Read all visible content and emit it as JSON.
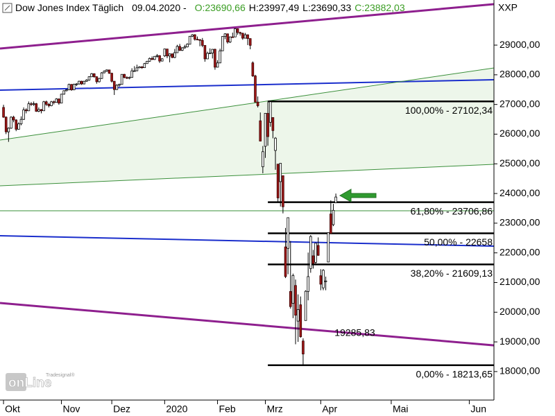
{
  "chart_data": {
    "type": "candlestick",
    "title": "Dow Jones Index Täglich",
    "date": "09.04.2020 -",
    "header_values": [
      {
        "text": "O:23690,66",
        "color": "#3a9d23"
      },
      {
        "text": "H:23997,49",
        "color": "#000000"
      },
      {
        "text": "L:23690,33",
        "color": "#000000"
      },
      {
        "text": "C:23882,03",
        "color": "#3a9d23"
      }
    ],
    "y_axis_label": "XXP",
    "logo": {
      "small": "Tradesignal®",
      "main": "onLine"
    },
    "up_color": "#ffffff",
    "down_color": "#a01818",
    "xlim": [
      -1.4,
      194.8
    ],
    "ylim": [
      17040,
      30520
    ],
    "xticks": [
      {
        "value": 0,
        "label": "Okt"
      },
      {
        "value": 23,
        "label": "Nov"
      },
      {
        "value": 43,
        "label": "Dez"
      },
      {
        "value": 64,
        "label": "2020"
      },
      {
        "value": 85,
        "label": "Feb"
      },
      {
        "value": 104,
        "label": "Mrz"
      },
      {
        "value": 126,
        "label": "Apr"
      },
      {
        "value": 154,
        "label": "Mai"
      },
      {
        "value": 185,
        "label": "Jun"
      }
    ],
    "yticks": [
      {
        "value": 18000,
        "label": "18000,00"
      },
      {
        "value": 19000,
        "label": "19000,00"
      },
      {
        "value": 20000,
        "label": "20000,00"
      },
      {
        "value": 21000,
        "label": "21000,00"
      },
      {
        "value": 22000,
        "label": "22000,00"
      },
      {
        "value": 23000,
        "label": "23000,00"
      },
      {
        "value": 24000,
        "label": "24000,00"
      },
      {
        "value": 25000,
        "label": "25000,00"
      },
      {
        "value": 26000,
        "label": "26000,00"
      },
      {
        "value": 27000,
        "label": "27000,00"
      },
      {
        "value": 28000,
        "label": "28000,00"
      },
      {
        "value": 29000,
        "label": "29000,00"
      }
    ],
    "x": [
      0,
      1,
      2,
      3,
      4,
      5,
      6,
      7,
      8,
      9,
      10,
      11,
      12,
      13,
      14,
      15,
      16,
      17,
      18,
      19,
      20,
      21,
      22,
      23,
      24,
      25,
      26,
      27,
      28,
      29,
      30,
      31,
      32,
      33,
      34,
      35,
      36,
      37,
      38,
      39,
      40,
      41,
      42,
      43,
      44,
      45,
      46,
      47,
      48,
      49,
      50,
      51,
      52,
      53,
      54,
      55,
      56,
      57,
      58,
      59,
      60,
      61,
      62,
      63,
      64,
      65,
      66,
      67,
      68,
      69,
      70,
      71,
      72,
      73,
      74,
      75,
      76,
      77,
      78,
      79,
      80,
      81,
      82,
      83,
      84,
      85,
      86,
      87,
      88,
      89,
      90,
      91,
      92,
      93,
      94,
      95,
      96,
      97,
      98,
      99,
      100,
      101,
      102,
      103,
      104,
      105,
      106,
      107,
      108,
      109,
      110,
      111,
      112,
      113,
      114,
      115,
      116,
      117,
      118,
      119,
      120,
      121,
      122,
      123,
      124,
      125,
      126,
      127,
      128,
      129,
      130,
      131,
      132
    ],
    "open": [
      26900,
      26573,
      26078,
      26201,
      26573,
      26478,
      26164,
      26346,
      26497,
      26817,
      26787,
      27024,
      27001,
      27026,
      26770,
      26827,
      26788,
      27091,
      27005,
      26958,
      27090,
      27071,
      27186,
      27046,
      27347,
      27462,
      27493,
      27675,
      27492,
      27681,
      27691,
      27783,
      27691,
      27781,
      27821,
      27934,
      28036,
      27934,
      27766,
      27875,
      28066,
      28121,
      28164,
      28051,
      27783,
      27502,
      27649,
      27677,
      28015,
      27909,
      27882,
      27911,
      28132,
      28135,
      28235,
      28267,
      28239,
      28377,
      28455,
      28551,
      28515,
      28621,
      28645,
      28462,
      28638,
      28869,
      28634,
      28704,
      28583,
      28745,
      28957,
      28824,
      28908,
      28940,
      29030,
      29298,
      29348,
      29196,
      29186,
      29160,
      28990,
      28536,
      28723,
      28735,
      28859,
      28256,
      28400,
      28808,
      29291,
      29380,
      29103,
      29277,
      29276,
      29551,
      29424,
      29398,
      29233,
      29348,
      29220,
      28402,
      27961,
      27081,
      26450,
      24900,
      25590,
      26700,
      26400,
      26560,
      25450,
      24990,
      24400,
      24600,
      22200,
      22150,
      20700,
      20300,
      20900,
      19700,
      20250,
      19030,
      19720,
      20700,
      21470,
      21900,
      21680,
      22250,
      21230,
      20820,
      21050,
      21690,
      23310,
      22950,
      23690.66
    ],
    "high": [
      26990,
      26600,
      26230,
      26600,
      26620,
      26500,
      26400,
      26600,
      26900,
      26870,
      27100,
      27080,
      27100,
      27050,
      26900,
      26850,
      27120,
      27130,
      27050,
      27120,
      27130,
      27210,
      27200,
      27360,
      27480,
      27520,
      27700,
      27690,
      27700,
      27720,
      27800,
      27800,
      27800,
      27850,
      27950,
      28060,
      28050,
      27950,
      27900,
      28090,
      28150,
      28180,
      28170,
      28070,
      27790,
      27680,
      27700,
      28020,
      28030,
      27950,
      27940,
      28220,
      28290,
      28340,
      28290,
      28290,
      28400,
      28470,
      28580,
      28620,
      28630,
      28700,
      28660,
      28560,
      28880,
      28870,
      28720,
      28720,
      28870,
      29010,
      29040,
      28930,
      29010,
      29060,
      29300,
      29370,
      29370,
      29290,
      29200,
      29240,
      28990,
      28780,
      28890,
      28870,
      28880,
      28490,
      28880,
      29300,
      29400,
      29390,
      29290,
      29420,
      29570,
      29560,
      29450,
      29420,
      29410,
      29360,
      29230,
      28450,
      28000,
      27270,
      26730,
      25600,
      26710,
      27102.34,
      27095,
      26560,
      25900,
      24990,
      25020,
      24600,
      22840,
      23190,
      22400,
      21300,
      21100,
      20600,
      20530,
      19120,
      20740,
      22010,
      22600,
      22100,
      22330,
      22520,
      21450,
      21450,
      21200,
      22680,
      23770,
      23650,
      23997.49
    ],
    "low": [
      26550,
      26000,
      25740,
      26180,
      26400,
      26100,
      26150,
      26300,
      26480,
      26700,
      26780,
      26950,
      26950,
      26750,
      26740,
      26700,
      26780,
      26950,
      26900,
      26940,
      27000,
      27060,
      26990,
      27040,
      27330,
      27440,
      27480,
      27460,
      27480,
      27620,
      27670,
      27660,
      27680,
      27760,
      27800,
      27920,
      27900,
      27700,
      27740,
      27860,
      28050,
      28100,
      28030,
      27740,
      27320,
      27490,
      27600,
      27670,
      27880,
      27860,
      27850,
      27900,
      28100,
      28120,
      28220,
      28200,
      28230,
      28370,
      28440,
      28500,
      28500,
      28580,
      28400,
      28450,
      28600,
      28560,
      28420,
      28560,
      28560,
      28740,
      28800,
      28800,
      28880,
      28920,
      29020,
      29270,
      29150,
      29170,
      28960,
      28930,
      28440,
      28530,
      28720,
      28550,
      28170,
      28250,
      28390,
      28800,
      29200,
      29050,
      29070,
      29250,
      29270,
      29350,
      29320,
      29180,
      29230,
      29000,
      28860,
      27930,
      27060,
      26900,
      25760,
      24680,
      25200,
      25610,
      26250,
      25860,
      24800,
      23710,
      23560,
      23330,
      21150,
      21280,
      20120,
      19800,
      18920,
      19000,
      19140,
      18213.65,
      19720,
      20400,
      21330,
      21470,
      21600,
      21900,
      20740,
      20740,
      20740,
      21690,
      22650,
      22900,
      23690.33
    ],
    "close": [
      26573,
      26078,
      26201,
      26573,
      26478,
      26164,
      26346,
      26497,
      26817,
      26787,
      27024,
      27001,
      27026,
      26770,
      26827,
      26788,
      27091,
      27005,
      26958,
      27090,
      27071,
      27186,
      27046,
      27347,
      27462,
      27493,
      27675,
      27492,
      27681,
      27691,
      27783,
      27691,
      27781,
      27821,
      27934,
      28036,
      27934,
      27766,
      27875,
      28066,
      28121,
      28164,
      28051,
      27783,
      27502,
      27649,
      27677,
      28015,
      27909,
      27882,
      27911,
      28132,
      28135,
      28235,
      28267,
      28239,
      28377,
      28455,
      28551,
      28515,
      28621,
      28645,
      28462,
      28538,
      28869,
      28634,
      28704,
      28583,
      28745,
      28957,
      28824,
      28908,
      28940,
      29030,
      29298,
      29348,
      29196,
      29186,
      29160,
      28990,
      28536,
      28723,
      28735,
      28859,
      28256,
      28400,
      28808,
      29291,
      29380,
      29103,
      29277,
      29276,
      29551,
      29424,
      29398,
      29233,
      29348,
      29220,
      28992,
      27961,
      27081,
      26957,
      25766,
      25409,
      26703,
      25917,
      27091,
      26121,
      25865,
      23851,
      25018,
      23553,
      21200,
      23186,
      20189,
      21237,
      19899,
      20087,
      19174,
      18592,
      20705,
      21200,
      22552,
      21637,
      22327,
      21917,
      20944,
      21413,
      21053,
      22680,
      22654,
      23434,
      23882.03
    ],
    "lines": [
      {
        "color": "#8e1f8e",
        "weight": "heavy",
        "x": [
          -1.4,
          194.8
        ],
        "y": [
          28884,
          30380
        ]
      },
      {
        "color": "#8e1f8e",
        "weight": "heavy",
        "x": [
          -1.4,
          194.8
        ],
        "y": [
          20310,
          18884
        ]
      },
      {
        "color": "#1a2ecc",
        "weight": "medium",
        "x": [
          -1.4,
          194.8
        ],
        "y": [
          27483,
          27833
        ]
      },
      {
        "color": "#1a2ecc",
        "weight": "medium",
        "x": [
          -1.4,
          194.8
        ],
        "y": [
          22576,
          22226
        ]
      },
      {
        "color": "#3a8f3a",
        "weight": "light",
        "x": [
          -1.4,
          194.8
        ],
        "y": [
          25800,
          28230
        ],
        "fill": "#edf6ea"
      },
      {
        "color": "#3a8f3a",
        "weight": "light",
        "x": [
          -1.4,
          194.8
        ],
        "y": [
          24258,
          24983
        ]
      },
      {
        "color": "#3a8f3a",
        "weight": "light",
        "x": [
          -1.4,
          194.8
        ],
        "y": [
          23417,
          23417
        ]
      }
    ],
    "fibonacci": {
      "x_start": 105,
      "color": "#000000",
      "levels": [
        {
          "value": 27102.34,
          "label": "100,00% - 27102,34"
        },
        {
          "value": 23706.86,
          "label": "61,80% - 23706,86"
        },
        {
          "value": 22658,
          "label": "50,00% - 22658"
        },
        {
          "value": 21609.13,
          "label": "38,20% - 21609,13"
        },
        {
          "value": 18213.65,
          "label": "0,00% - 18213,65"
        }
      ]
    },
    "annotation": {
      "x": 131.5,
      "value": 19285.83,
      "label": "19285,83",
      "color": "#8e1f8e"
    }
  }
}
